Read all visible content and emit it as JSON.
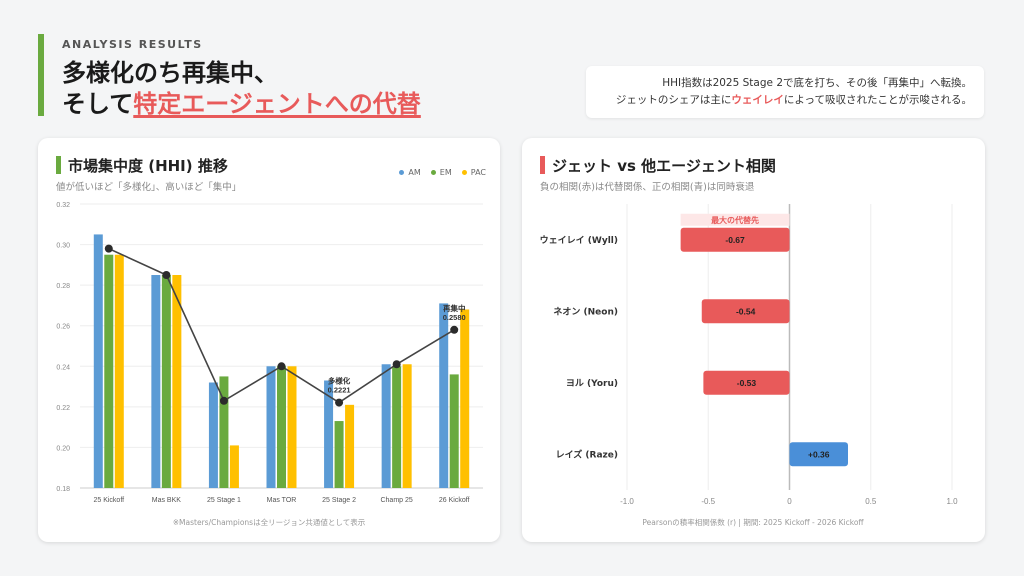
{
  "header": {
    "eyebrow": "ANALYSIS RESULTS",
    "title_line1": "多様化のち再集中、",
    "title_line2_prefix": "そして",
    "title_line2_highlight": "特定エージェントへの代替"
  },
  "note": {
    "line1": "HHI指数は2025 Stage 2で底を打ち、その後「再集中」へ転換。",
    "line2_prefix": "ジェットのシェアは主に",
    "line2_highlight": "ウェイレイ",
    "line2_suffix": "によって吸収されたことが示唆される。"
  },
  "colors": {
    "AM": "#5b9bd5",
    "EM": "#6aaa3f",
    "PAC": "#ffc000",
    "accent_green": "#6aaa3f",
    "accent_red": "#e85a5a",
    "neg_bar": "#e85a5a",
    "pos_bar": "#4a8fd8"
  },
  "left_card": {
    "title": "市場集中度 (HHI) 推移",
    "subtitle": "値が低いほど「多様化」、高いほど「集中」",
    "footnote": "※Masters/Championsは全リージョン共通値として表示"
  },
  "right_card": {
    "title": "ジェット vs 他エージェント相関",
    "subtitle": "負の相関(赤)は代替関係、正の相関(青)は同時衰退",
    "footnote": "Pearsonの積率相関係数 (r) | 期間: 2025 Kickoff - 2026 Kickoff"
  },
  "chart_data": [
    {
      "type": "bar",
      "title": "市場集中度 (HHI) 推移",
      "categories": [
        "25 Kickoff",
        "Mas BKK",
        "25 Stage 1",
        "Mas TOR",
        "25 Stage 2",
        "Champ 25",
        "26 Kickoff"
      ],
      "series": [
        {
          "name": "AM",
          "values": [
            0.305,
            0.285,
            0.232,
            0.24,
            0.233,
            0.241,
            0.271
          ]
        },
        {
          "name": "EM",
          "values": [
            0.295,
            0.285,
            0.235,
            0.24,
            0.213,
            0.24,
            0.236
          ]
        },
        {
          "name": "PAC",
          "values": [
            0.295,
            0.285,
            0.201,
            0.24,
            0.221,
            0.241,
            0.268
          ]
        }
      ],
      "line": {
        "values": [
          0.298,
          0.285,
          0.223,
          0.24,
          0.2221,
          0.241,
          0.258
        ]
      },
      "annotations": [
        {
          "index": 4,
          "label": "多様化",
          "value": "0.2221"
        },
        {
          "index": 6,
          "label": "再集中",
          "value": "0.2580"
        }
      ],
      "yticks": [
        "0.18",
        "0.20",
        "0.22",
        "0.24",
        "0.26",
        "0.28",
        "0.30",
        "0.32"
      ],
      "ylim": [
        0.18,
        0.32
      ],
      "legend": "top-right"
    },
    {
      "type": "bar",
      "orientation": "horizontal",
      "title": "ジェット vs 他エージェント相関",
      "categories": [
        "ウェイレイ (Wyll)",
        "ネオン (Neon)",
        "ヨル (Yoru)",
        "レイズ (Raze)"
      ],
      "values": [
        -0.67,
        -0.54,
        -0.53,
        0.36
      ],
      "value_labels": [
        "-0.67",
        "-0.54",
        "-0.53",
        "+0.36"
      ],
      "highlight": {
        "index": 0,
        "label": "最大の代替先"
      },
      "xticks": [
        "-1.0",
        "-0.5",
        "0",
        "0.5",
        "1.0"
      ],
      "xlim": [
        -1.0,
        1.0
      ]
    }
  ]
}
